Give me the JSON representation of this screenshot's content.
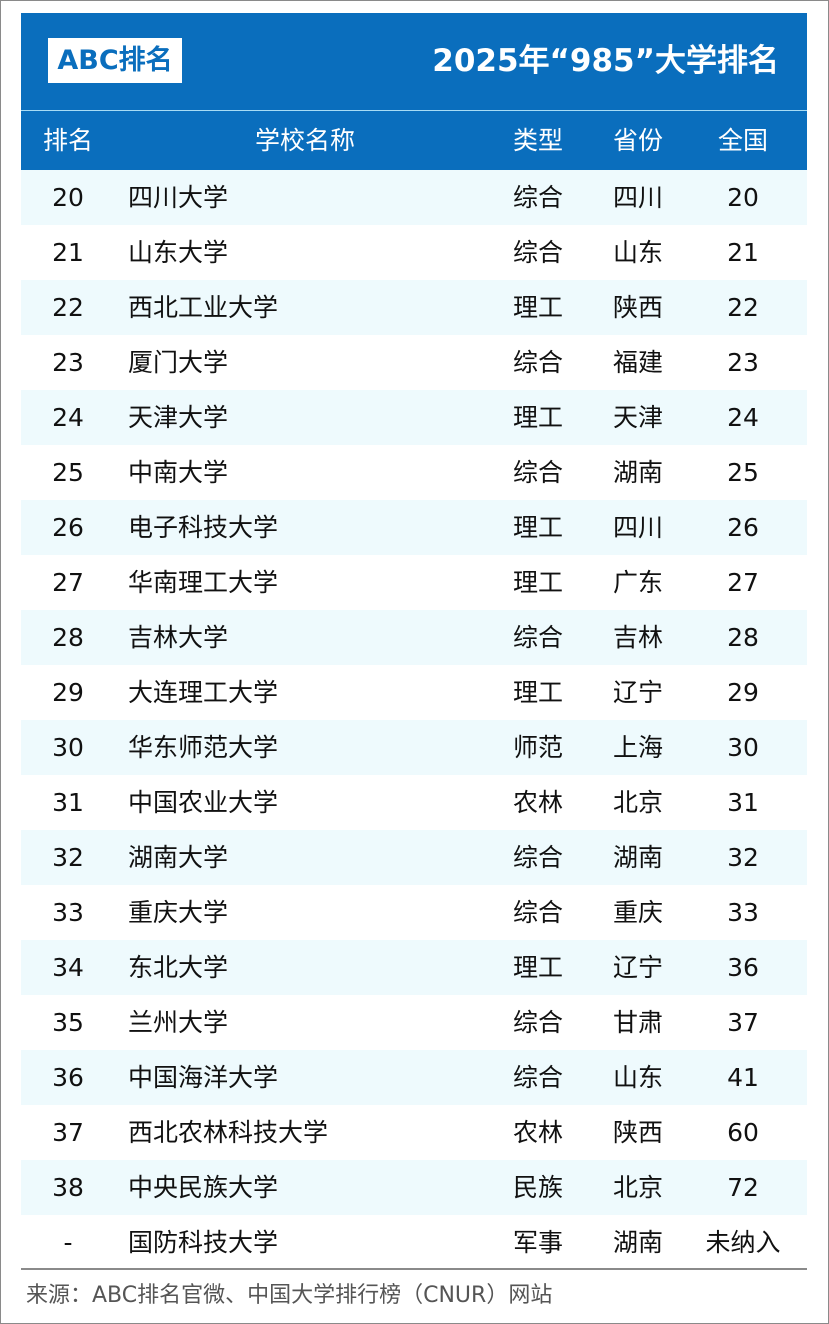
{
  "header": {
    "logo": "ABC排名",
    "title": "2025年“985”大学排名",
    "accent_color": "#0a6ebd"
  },
  "columns": {
    "rank": "排名",
    "name": "学校名称",
    "type": "类型",
    "province": "省份",
    "national": "全国"
  },
  "rows": [
    {
      "rank": "20",
      "name": "四川大学",
      "type": "综合",
      "province": "四川",
      "national": "20"
    },
    {
      "rank": "21",
      "name": "山东大学",
      "type": "综合",
      "province": "山东",
      "national": "21"
    },
    {
      "rank": "22",
      "name": "西北工业大学",
      "type": "理工",
      "province": "陕西",
      "national": "22"
    },
    {
      "rank": "23",
      "name": "厦门大学",
      "type": "综合",
      "province": "福建",
      "national": "23"
    },
    {
      "rank": "24",
      "name": "天津大学",
      "type": "理工",
      "province": "天津",
      "national": "24"
    },
    {
      "rank": "25",
      "name": "中南大学",
      "type": "综合",
      "province": "湖南",
      "national": "25"
    },
    {
      "rank": "26",
      "name": "电子科技大学",
      "type": "理工",
      "province": "四川",
      "national": "26"
    },
    {
      "rank": "27",
      "name": "华南理工大学",
      "type": "理工",
      "province": "广东",
      "national": "27"
    },
    {
      "rank": "28",
      "name": "吉林大学",
      "type": "综合",
      "province": "吉林",
      "national": "28"
    },
    {
      "rank": "29",
      "name": "大连理工大学",
      "type": "理工",
      "province": "辽宁",
      "national": "29"
    },
    {
      "rank": "30",
      "name": "华东师范大学",
      "type": "师范",
      "province": "上海",
      "national": "30"
    },
    {
      "rank": "31",
      "name": "中国农业大学",
      "type": "农林",
      "province": "北京",
      "national": "31"
    },
    {
      "rank": "32",
      "name": "湖南大学",
      "type": "综合",
      "province": "湖南",
      "national": "32"
    },
    {
      "rank": "33",
      "name": "重庆大学",
      "type": "综合",
      "province": "重庆",
      "national": "33"
    },
    {
      "rank": "34",
      "name": "东北大学",
      "type": "理工",
      "province": "辽宁",
      "national": "36"
    },
    {
      "rank": "35",
      "name": "兰州大学",
      "type": "综合",
      "province": "甘肃",
      "national": "37"
    },
    {
      "rank": "36",
      "name": "中国海洋大学",
      "type": "综合",
      "province": "山东",
      "national": "41"
    },
    {
      "rank": "37",
      "name": "西北农林科技大学",
      "type": "农林",
      "province": "陕西",
      "national": "60"
    },
    {
      "rank": "38",
      "name": "中央民族大学",
      "type": "民族",
      "province": "北京",
      "national": "72"
    },
    {
      "rank": "-",
      "name": "国防科技大学",
      "type": "军事",
      "province": "湖南",
      "national": "未纳入"
    }
  ],
  "footer": {
    "source": "来源：ABC排名官微、中国大学排行榜（CNUR）网站"
  }
}
